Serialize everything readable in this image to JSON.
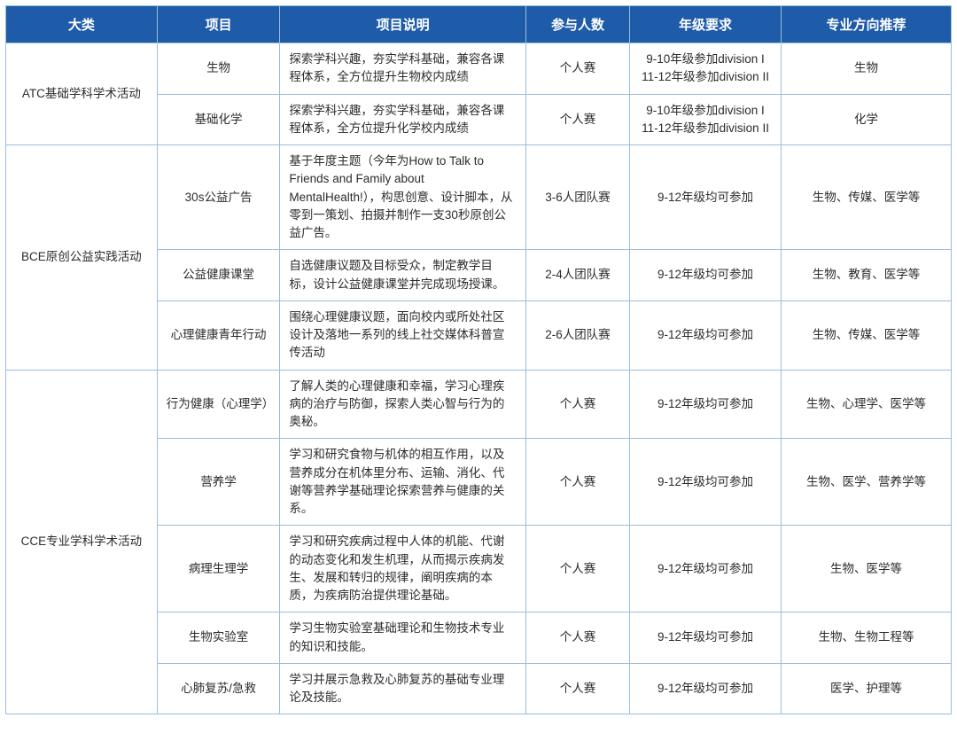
{
  "headers": {
    "category": "大类",
    "project": "项目",
    "description": "项目说明",
    "participants": "参与人数",
    "grade": "年级要求",
    "major": "专业方向推荐"
  },
  "groups": [
    {
      "category": "ATC基础学科学术活动",
      "rows": [
        {
          "project": "生物",
          "description": "探索学科兴趣，夯实学科基础，兼容各课程体系，全方位提升生物校内成绩",
          "participants": "个人赛",
          "grade": "9-10年级参加division I\n11-12年级参加division II",
          "major": "生物"
        },
        {
          "project": "基础化学",
          "description": "探索学科兴趣，夯实学科基础，兼容各课程体系，全方位提升化学校内成绩",
          "participants": "个人赛",
          "grade": "9-10年级参加division I\n11-12年级参加division II",
          "major": "化学"
        }
      ]
    },
    {
      "category": "BCE原创公益实践活动",
      "rows": [
        {
          "project": "30s公益广告",
          "description": "基于年度主题（今年为How to Talk to Friends and Family about MentalHealth!），构思创意、设计脚本，从零到一策划、拍摄并制作一支30秒原创公益广告。",
          "participants": "3-6人团队赛",
          "grade": "9-12年级均可参加",
          "major": "生物、传媒、医学等"
        },
        {
          "project": "公益健康课堂",
          "description": "自选健康议题及目标受众，制定教学目标，设计公益健康课堂并完成现场授课。",
          "participants": "2-4人团队赛",
          "grade": "9-12年级均可参加",
          "major": "生物、教育、医学等"
        },
        {
          "project": "心理健康青年行动",
          "description": "围绕心理健康议题，面向校内或所处社区设计及落地一系列的线上社交媒体科普宣传活动",
          "participants": "2-6人团队赛",
          "grade": "9-12年级均可参加",
          "major": "生物、传媒、医学等"
        }
      ]
    },
    {
      "category": "CCE专业学科学术活动",
      "rows": [
        {
          "project": "行为健康（心理学）",
          "description": "了解人类的心理健康和幸福，学习心理疾病的治疗与防御，探索人类心智与行为的奥秘。",
          "participants": "个人赛",
          "grade": "9-12年级均可参加",
          "major": "生物、心理学、医学等"
        },
        {
          "project": "营养学",
          "description": "学习和研究食物与机体的相互作用，以及营养成分在机体里分布、运输、消化、代谢等营养学基础理论探索营养与健康的关系。",
          "participants": "个人赛",
          "grade": "9-12年级均可参加",
          "major": "生物、医学、营养学等"
        },
        {
          "project": "病理生理学",
          "description": "学习和研究疾病过程中人体的机能、代谢的动态变化和发生机理，从而揭示疾病发生、发展和转归的规律，阐明疾病的本质，为疾病防治提供理论基础。",
          "participants": "个人赛",
          "grade": "9-12年级均可参加",
          "major": "生物、医学等"
        },
        {
          "project": "生物实验室",
          "description": "学习生物实验室基础理论和生物技术专业的知识和技能。",
          "participants": "个人赛",
          "grade": "9-12年级均可参加",
          "major": "生物、生物工程等"
        },
        {
          "project": "心肺复苏/急救",
          "description": "学习并展示急救及心肺复苏的基础专业理论及技能。",
          "participants": "个人赛",
          "grade": "9-12年级均可参加",
          "major": "医学、护理等"
        }
      ]
    }
  ]
}
